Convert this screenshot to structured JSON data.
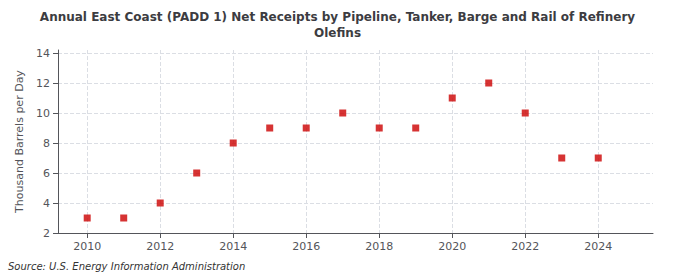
{
  "chart_data": {
    "type": "scatter",
    "title": "Annual East Coast (PADD 1) Net Receipts by Pipeline, Tanker, Barge and Rail of Refinery\nOlefins",
    "ylabel": "Thousand Barrels per Day",
    "annotation": "Source: U.S. Energy Information Administration",
    "x": [
      2010,
      2011,
      2012,
      2013,
      2014,
      2015,
      2016,
      2017,
      2018,
      2019,
      2020,
      2021,
      2022,
      2023,
      2024
    ],
    "values": [
      3,
      3,
      4,
      6,
      8,
      9,
      9,
      10,
      9,
      9,
      11,
      12,
      10,
      7,
      7
    ],
    "color": "#cc0000",
    "marker": "square",
    "xlim": [
      2009.2,
      2025.5
    ],
    "xticks": [
      2010,
      2012,
      2014,
      2016,
      2018,
      2020,
      2022,
      2024
    ],
    "ylim": [
      2,
      14.2
    ],
    "yticks": [
      2,
      4,
      6,
      8,
      10,
      12,
      14
    ],
    "grid": true
  }
}
